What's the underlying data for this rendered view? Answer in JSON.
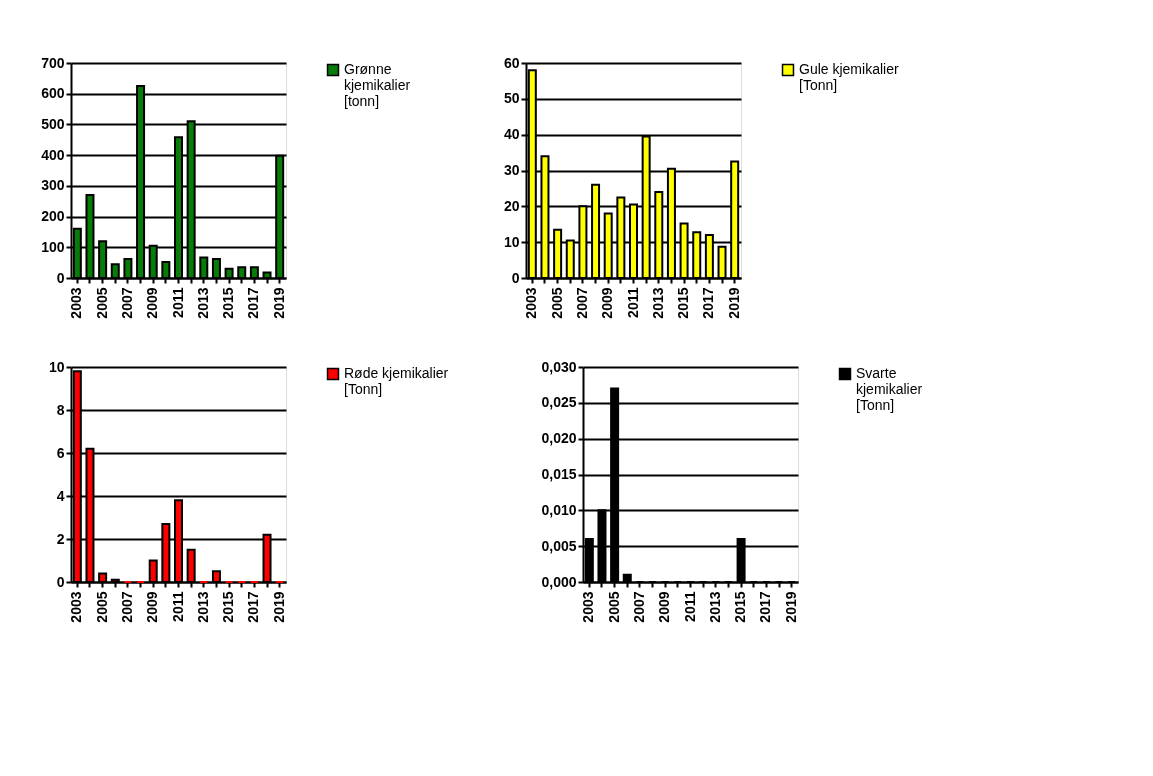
{
  "chart_data": [
    {
      "type": "bar",
      "categories": [
        "2003",
        null,
        "2005",
        null,
        "2007",
        null,
        "2009",
        null,
        "2011",
        null,
        "2013",
        null,
        "2015",
        null,
        "2017",
        null,
        "2019"
      ],
      "series": [
        {
          "name": "Grønne kjemikalier [tonn]",
          "color": "#087c08",
          "values": [
            160,
            270,
            120,
            45,
            62,
            625,
            105,
            52,
            458,
            510,
            67,
            62,
            30,
            35,
            35,
            18,
            398
          ]
        }
      ],
      "ylim": [
        0,
        700
      ],
      "yticks": [
        0,
        100,
        200,
        300,
        400,
        500,
        600,
        700
      ],
      "grid": "y",
      "legend": "right"
    },
    {
      "type": "bar",
      "categories": [
        "2003",
        null,
        "2005",
        null,
        "2007",
        null,
        "2009",
        null,
        "2011",
        null,
        "2013",
        null,
        "2015",
        null,
        "2017",
        null,
        "2019"
      ],
      "series": [
        {
          "name": "Gule kjemikalier [Tonn]",
          "color": "#ffff00",
          "values": [
            58,
            34,
            13.5,
            10.5,
            20,
            26,
            18,
            22.5,
            20.5,
            39.5,
            24,
            30.5,
            15.2,
            12.8,
            12,
            8.7,
            32.5
          ]
        }
      ],
      "ylim": [
        0,
        60
      ],
      "yticks": [
        0,
        10,
        20,
        30,
        40,
        50,
        60
      ],
      "grid": "y",
      "legend": "right"
    },
    {
      "type": "bar",
      "categories": [
        "2003",
        null,
        "2005",
        null,
        "2007",
        null,
        "2009",
        null,
        "2011",
        null,
        "2013",
        null,
        "2015",
        null,
        "2017",
        null,
        "2019"
      ],
      "series": [
        {
          "name": "Røde kjemikalier [Tonn]",
          "color": "#ff0000",
          "values": [
            9.8,
            6.2,
            0.4,
            0.1,
            0,
            0,
            1,
            2.7,
            3.8,
            1.5,
            0,
            0.5,
            0,
            0,
            0,
            2.2,
            0
          ]
        }
      ],
      "ylim": [
        0,
        10
      ],
      "yticks": [
        0,
        2,
        4,
        6,
        8,
        10
      ],
      "grid": "y",
      "legend": "right"
    },
    {
      "type": "bar",
      "categories": [
        "2003",
        null,
        "2005",
        null,
        "2007",
        null,
        "2009",
        null,
        "2011",
        null,
        "2013",
        null,
        "2015",
        null,
        "2017",
        null,
        "2019"
      ],
      "series": [
        {
          "name": "Svarte kjemikalier [Tonn]",
          "color": "#000000",
          "values": [
            0.006,
            0.01,
            0.027,
            0.001,
            0,
            0,
            0,
            0,
            0,
            0,
            0,
            0,
            0.006,
            0,
            0,
            0,
            0
          ]
        }
      ],
      "ylim": [
        0,
        0.03
      ],
      "yticks": [
        {
          "value": 0,
          "label": "0,000"
        },
        {
          "value": 0.005,
          "label": "0,005"
        },
        {
          "value": 0.01,
          "label": "0,010"
        },
        {
          "value": 0.015,
          "label": "0,015"
        },
        {
          "value": 0.02,
          "label": "0,020"
        },
        {
          "value": 0.025,
          "label": "0,025"
        },
        {
          "value": 0.03,
          "label": "0,030"
        }
      ],
      "grid": "y",
      "legend": "right"
    }
  ]
}
